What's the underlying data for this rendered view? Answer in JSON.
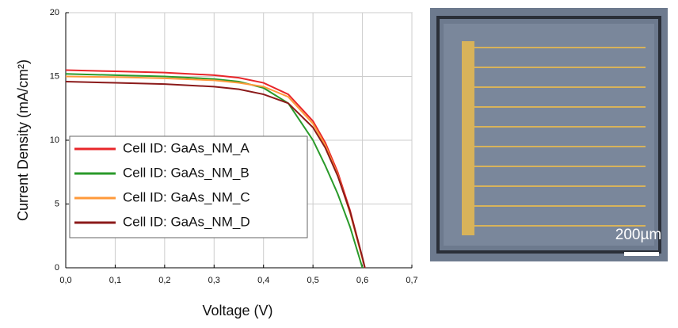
{
  "chart_data": {
    "type": "line",
    "xlabel": "Voltage (V)",
    "ylabel": "Current Density (mA/cm²)",
    "x": [
      0,
      0.1,
      0.2,
      0.3,
      0.35,
      0.4,
      0.45,
      0.5,
      0.525,
      0.55,
      0.575,
      0.6,
      0.605
    ],
    "series": [
      {
        "name": "Cell ID: GaAs_NM_A",
        "color": "#e8262a",
        "values": [
          15.5,
          15.4,
          15.3,
          15.1,
          14.9,
          14.5,
          13.6,
          11.5,
          9.8,
          7.5,
          4.5,
          0.8,
          0
        ]
      },
      {
        "name": "Cell ID: GaAs_NM_B",
        "color": "#2a9a2a",
        "values": [
          15.2,
          15.1,
          15.0,
          14.8,
          14.6,
          14.1,
          12.9,
          10.0,
          8.0,
          5.8,
          3.2,
          0,
          null
        ]
      },
      {
        "name": "Cell ID: GaAs_NM_C",
        "color": "#ff9a3a",
        "values": [
          15.0,
          14.95,
          14.85,
          14.7,
          14.5,
          14.2,
          13.4,
          11.3,
          9.6,
          7.3,
          4.3,
          0.7,
          0
        ]
      },
      {
        "name": "Cell ID: GaAs_NM_D",
        "color": "#8b1a1a",
        "values": [
          14.6,
          14.5,
          14.4,
          14.2,
          14.0,
          13.6,
          12.9,
          11.0,
          9.4,
          7.2,
          4.4,
          0.8,
          0
        ]
      }
    ],
    "xlim": [
      0,
      0.7
    ],
    "ylim": [
      0,
      20
    ],
    "xticks": [
      {
        "value": 0,
        "label": "0,0"
      },
      {
        "value": 0.1,
        "label": "0,1"
      },
      {
        "value": 0.2,
        "label": "0,2"
      },
      {
        "value": 0.3,
        "label": "0,3"
      },
      {
        "value": 0.4,
        "label": "0,4"
      },
      {
        "value": 0.5,
        "label": "0,5"
      },
      {
        "value": 0.6,
        "label": "0,6"
      },
      {
        "value": 0.7,
        "label": "0,7"
      }
    ],
    "yticks": [
      0,
      5,
      10,
      15,
      20
    ],
    "grid": true
  },
  "image": {
    "scale_label": "200µm"
  }
}
